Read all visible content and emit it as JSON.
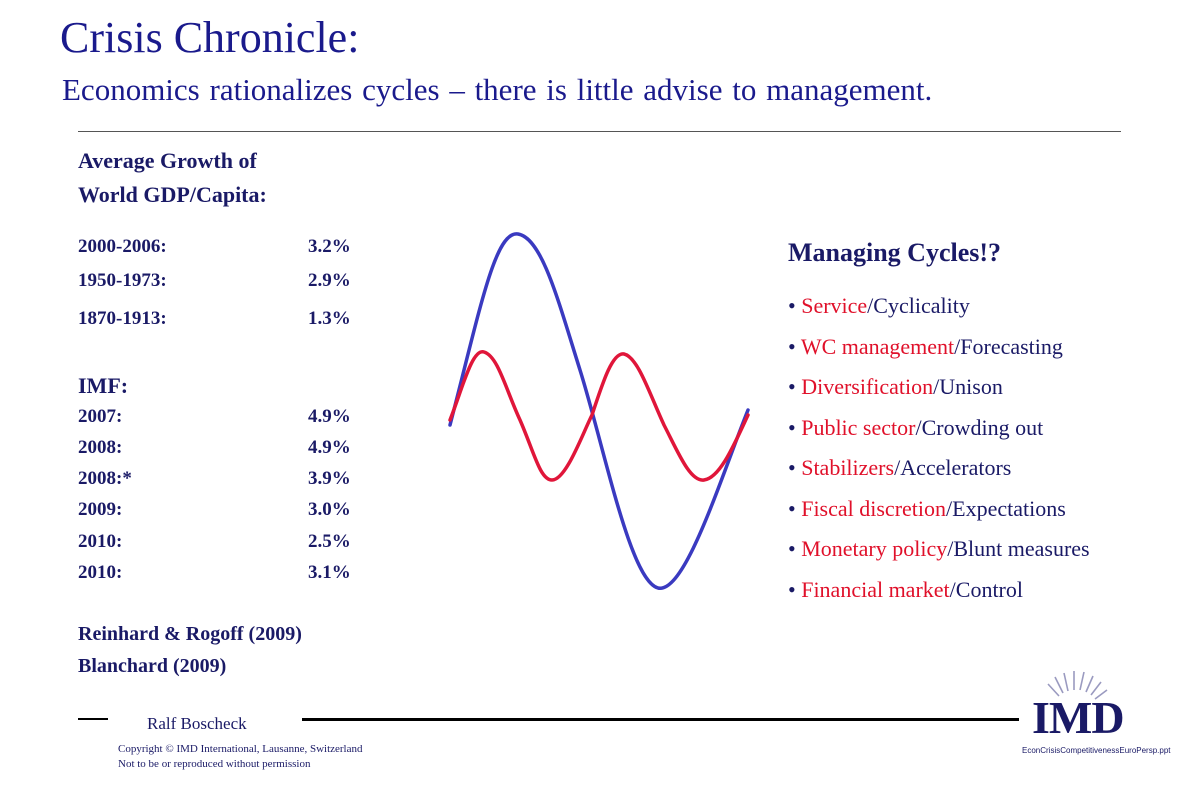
{
  "title": "Crisis Chronicle:",
  "subtitle": "Economics rationalizes cycles – there is little advise to management.",
  "growth": {
    "heading_line1": "Average Growth of",
    "heading_line2": "World GDP/Capita:",
    "rows": [
      {
        "period": "2000-2006:",
        "value": "3.2%"
      },
      {
        "period": "1950-1973:",
        "value": "2.9%"
      },
      {
        "period": "1870-1913:",
        "value": "1.3%"
      }
    ]
  },
  "imf": {
    "heading": "IMF:",
    "rows": [
      {
        "period": "2007:",
        "value": "4.9%"
      },
      {
        "period": "2008:",
        "value": "4.9%"
      },
      {
        "period": "2008:*",
        "value": "3.9%"
      },
      {
        "period": "2009:",
        "value": "3.0%"
      },
      {
        "period": "2010:",
        "value": "2.5%"
      },
      {
        "period": "2010:",
        "value": "3.1%"
      }
    ]
  },
  "references": [
    "Reinhard & Rogoff (2009)",
    "Blanchard (2009)"
  ],
  "managing": {
    "title": "Managing Cycles!?",
    "items": [
      {
        "red": "Service",
        "blue": "/Cyclicality"
      },
      {
        "red": "WC management",
        "blue": "/Forecasting"
      },
      {
        "red": "Diversification",
        "blue": "/Unison"
      },
      {
        "red": "Public sector",
        "blue": "/Crowding out"
      },
      {
        "red": "Stabilizers",
        "blue": "/Accelerators"
      },
      {
        "red": "Fiscal discretion",
        "blue": "/Expectations"
      },
      {
        "red": "Monetary policy",
        "blue": "/Blunt measures"
      },
      {
        "red": "Financial market",
        "blue": "/Control"
      }
    ]
  },
  "footer": {
    "author": "Ralf Boscheck",
    "copyright_line1": "Copyright © IMD International, Lausanne, Switzerland",
    "copyright_line2": "Not to be or reproduced without permission",
    "filename": "EconCrisisCompetitivenessEuroPersp.ppt",
    "logo_text": "IMD"
  },
  "colors": {
    "title": "#1a1a8c",
    "text": "#1a1a66",
    "highlight_red": "#e0102a",
    "wave_blue": "#3a3ac0",
    "wave_red": "#e0163a"
  }
}
